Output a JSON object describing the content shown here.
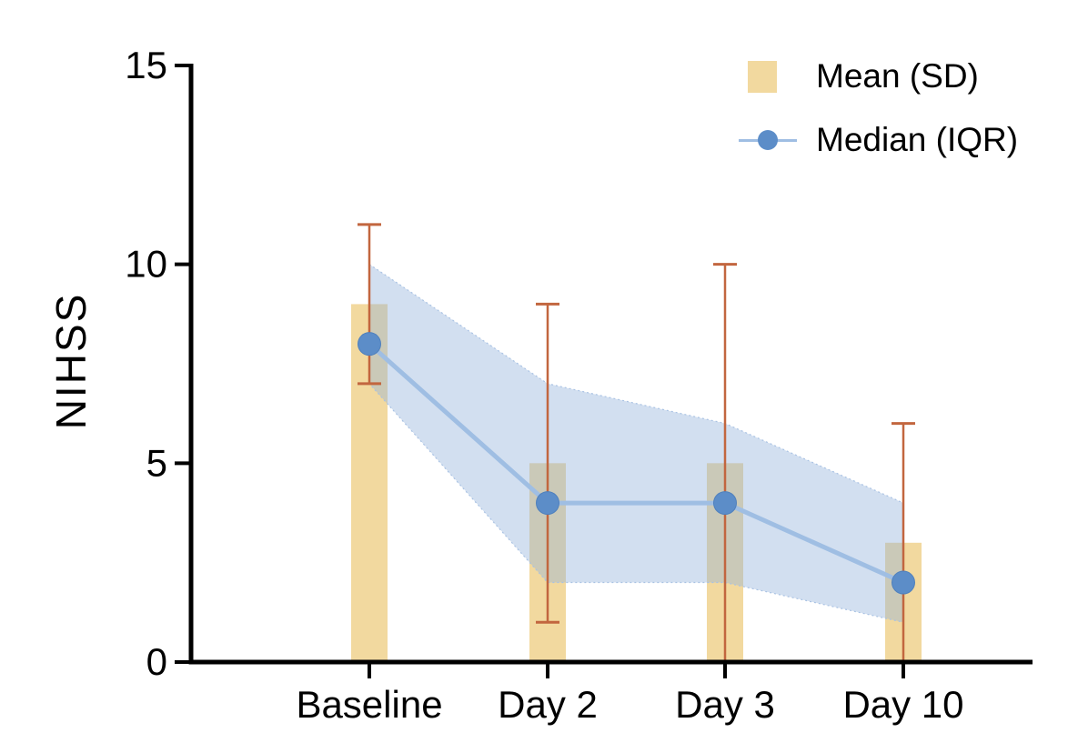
{
  "figure": {
    "background": "#FFFFFF",
    "axis_color": "#000000"
  },
  "legend": {
    "position": "top-right",
    "items": [
      {
        "label": "Mean (SD)",
        "marker": "square",
        "color": "#F2D99F"
      },
      {
        "label": "Median (IQR)",
        "marker": "line-dot",
        "line_color": "#9FBEE3",
        "dot_color": "#5C8DC8"
      }
    ]
  },
  "chart_data": {
    "type": "bar",
    "subtype": "bar-with-line-overlay",
    "title": "",
    "xlabel": "",
    "ylabel": "NIHSS",
    "categories": [
      "Baseline",
      "Day 2",
      "Day 3",
      "Day 10"
    ],
    "ylim": [
      0,
      15
    ],
    "yticks": [
      0,
      5,
      10,
      15
    ],
    "grid": false,
    "legend_position": "top-right",
    "series": [
      {
        "name": "Mean (SD)",
        "type": "bar",
        "values": [
          9,
          5,
          5,
          3
        ],
        "error_low": [
          7,
          1,
          0,
          0
        ],
        "error_high": [
          11,
          9,
          10,
          6
        ],
        "bar_color": "#F2D99F",
        "error_color": "#C2663F"
      },
      {
        "name": "Median (IQR)",
        "type": "line",
        "values": [
          8,
          4,
          4,
          2
        ],
        "band_low": [
          7,
          2,
          2,
          1
        ],
        "band_high": [
          10,
          7,
          6,
          4
        ],
        "line_color": "#9FBEE3",
        "dot_color": "#5C8DC8",
        "band_color": "#94B3DB",
        "band_opacity": 0.42,
        "band_edge_color": "#A9C2E3"
      }
    ]
  }
}
